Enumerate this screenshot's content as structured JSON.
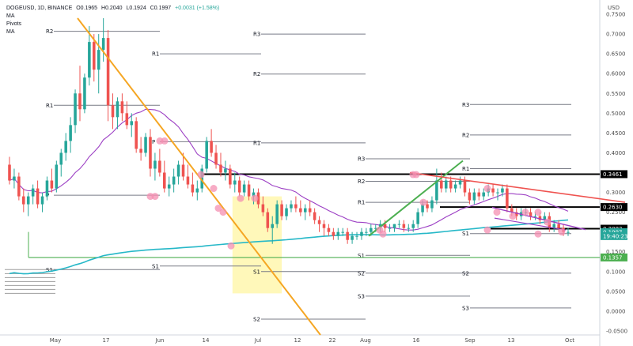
{
  "legend": {
    "symbol": "DOGEUSD, 1D, BINANCE",
    "open": "O0.1965",
    "high": "H0.2040",
    "low": "L0.1924",
    "close": "C0.1997",
    "change": "+0.0031 (+1.58%)",
    "ma1": "MA",
    "pivots": "Pivots",
    "ma2": "MA"
  },
  "colors": {
    "up": "#26a69a",
    "down": "#ef5350",
    "ma_long": "#26b8c8",
    "ma_short": "#9c3fc4",
    "trend_orange": "#f5a623",
    "trend_green": "#4caf50",
    "trend_red": "#ef5350",
    "trend_purple": "#9c3fc4",
    "box_yellow": "#fff59d",
    "horizontal_green": "#4caf50",
    "pivot": "#787b86",
    "circle": "#f48fb1"
  },
  "chart_data": {
    "type": "candlestick",
    "currency_label": "USD",
    "y_ticks": [
      "0.7500",
      "0.7000",
      "0.6500",
      "0.6000",
      "0.5500",
      "0.5000",
      "0.4500",
      "0.4000",
      "0.3500",
      "0.3000",
      "0.2500",
      "0.2000",
      "0.1500",
      "0.1000",
      "0.0500",
      "0.0000",
      "-0.0500"
    ],
    "y_range": [
      -0.06,
      0.77
    ],
    "x_ticks": [
      "May",
      "17",
      "Jun",
      "14",
      "Jul",
      "12",
      "22",
      "Aug",
      "16",
      "Sep",
      "13",
      "Oct"
    ],
    "price_labels": [
      {
        "text": "0.3461",
        "value": 0.3461,
        "style": "black"
      },
      {
        "text": "0.2630",
        "value": 0.263,
        "style": "black"
      },
      {
        "text": "0.2083",
        "value": 0.2083,
        "style": "black"
      },
      {
        "text": "0.1997",
        "value": 0.1997,
        "style": "teal"
      },
      {
        "text": "19:40:23",
        "value": 0.1897,
        "style": "teal"
      },
      {
        "text": "0.1357",
        "value": 0.1357,
        "style": "green"
      }
    ],
    "pivot_levels": [
      {
        "label": "R3",
        "value": 0.7
      },
      {
        "label": "R2",
        "value": 0.707
      },
      {
        "label": "R1",
        "value": 0.65
      },
      {
        "label": "R2",
        "value": 0.599
      },
      {
        "label": "R1",
        "value": 0.52
      },
      {
        "label": "R3",
        "value": 0.522
      },
      {
        "label": "R2",
        "value": 0.445
      },
      {
        "label": "P",
        "value": 0.428
      },
      {
        "label": "R1",
        "value": 0.425
      },
      {
        "label": "R1",
        "value": 0.36
      },
      {
        "label": "R3",
        "value": 0.385
      },
      {
        "label": "R2",
        "value": 0.328
      },
      {
        "label": "P",
        "value": 0.293
      },
      {
        "label": "R1",
        "value": 0.275
      },
      {
        "label": "S1",
        "value": 0.196
      },
      {
        "label": "S1",
        "value": 0.105
      },
      {
        "label": "S1",
        "value": 0.141
      },
      {
        "label": "S1",
        "value": 0.114
      },
      {
        "label": "S1",
        "value": 0.1
      },
      {
        "label": "S2",
        "value": 0.096
      },
      {
        "label": "S2",
        "value": 0.096
      },
      {
        "label": "S3",
        "value": 0.038
      },
      {
        "label": "S2",
        "value": -0.02
      },
      {
        "label": "S3",
        "value": 0.008
      }
    ],
    "candles": [
      [
        0.37,
        0.39,
        0.32,
        0.33
      ],
      [
        0.33,
        0.36,
        0.31,
        0.34
      ],
      [
        0.34,
        0.35,
        0.28,
        0.29
      ],
      [
        0.29,
        0.31,
        0.25,
        0.27
      ],
      [
        0.27,
        0.3,
        0.24,
        0.29
      ],
      [
        0.29,
        0.32,
        0.27,
        0.31
      ],
      [
        0.31,
        0.33,
        0.26,
        0.27
      ],
      [
        0.27,
        0.3,
        0.25,
        0.29
      ],
      [
        0.29,
        0.34,
        0.28,
        0.33
      ],
      [
        0.33,
        0.36,
        0.3,
        0.31
      ],
      [
        0.31,
        0.38,
        0.3,
        0.37
      ],
      [
        0.37,
        0.41,
        0.34,
        0.4
      ],
      [
        0.4,
        0.45,
        0.38,
        0.43
      ],
      [
        0.43,
        0.49,
        0.4,
        0.47
      ],
      [
        0.47,
        0.56,
        0.45,
        0.55
      ],
      [
        0.55,
        0.62,
        0.48,
        0.51
      ],
      [
        0.51,
        0.6,
        0.5,
        0.59
      ],
      [
        0.59,
        0.72,
        0.57,
        0.68
      ],
      [
        0.68,
        0.7,
        0.58,
        0.61
      ],
      [
        0.61,
        0.7,
        0.55,
        0.66
      ],
      [
        0.66,
        0.74,
        0.63,
        0.69
      ],
      [
        0.69,
        0.71,
        0.48,
        0.52
      ],
      [
        0.52,
        0.55,
        0.46,
        0.49
      ],
      [
        0.49,
        0.54,
        0.46,
        0.53
      ],
      [
        0.53,
        0.55,
        0.48,
        0.5
      ],
      [
        0.5,
        0.53,
        0.46,
        0.47
      ],
      [
        0.47,
        0.5,
        0.44,
        0.48
      ],
      [
        0.48,
        0.49,
        0.4,
        0.41
      ],
      [
        0.41,
        0.44,
        0.38,
        0.4
      ],
      [
        0.4,
        0.45,
        0.39,
        0.44
      ],
      [
        0.44,
        0.46,
        0.34,
        0.36
      ],
      [
        0.36,
        0.4,
        0.33,
        0.38
      ],
      [
        0.38,
        0.41,
        0.34,
        0.35
      ],
      [
        0.35,
        0.38,
        0.3,
        0.31
      ],
      [
        0.31,
        0.34,
        0.29,
        0.32
      ],
      [
        0.32,
        0.36,
        0.3,
        0.34
      ],
      [
        0.34,
        0.38,
        0.32,
        0.37
      ],
      [
        0.37,
        0.4,
        0.33,
        0.34
      ],
      [
        0.34,
        0.37,
        0.31,
        0.32
      ],
      [
        0.32,
        0.35,
        0.29,
        0.3
      ],
      [
        0.3,
        0.33,
        0.28,
        0.31
      ],
      [
        0.31,
        0.37,
        0.3,
        0.36
      ],
      [
        0.36,
        0.44,
        0.35,
        0.43
      ],
      [
        0.43,
        0.46,
        0.39,
        0.4
      ],
      [
        0.4,
        0.42,
        0.36,
        0.37
      ],
      [
        0.37,
        0.4,
        0.34,
        0.35
      ],
      [
        0.35,
        0.38,
        0.33,
        0.36
      ],
      [
        0.36,
        0.37,
        0.31,
        0.32
      ],
      [
        0.32,
        0.35,
        0.3,
        0.33
      ],
      [
        0.33,
        0.34,
        0.29,
        0.3
      ],
      [
        0.3,
        0.33,
        0.29,
        0.32
      ],
      [
        0.32,
        0.33,
        0.28,
        0.29
      ],
      [
        0.29,
        0.31,
        0.27,
        0.3
      ],
      [
        0.3,
        0.31,
        0.26,
        0.27
      ],
      [
        0.27,
        0.29,
        0.24,
        0.25
      ],
      [
        0.25,
        0.26,
        0.2,
        0.21
      ],
      [
        0.21,
        0.24,
        0.17,
        0.22
      ],
      [
        0.22,
        0.28,
        0.21,
        0.27
      ],
      [
        0.27,
        0.28,
        0.23,
        0.24
      ],
      [
        0.24,
        0.27,
        0.23,
        0.26
      ],
      [
        0.26,
        0.28,
        0.25,
        0.27
      ],
      [
        0.27,
        0.29,
        0.25,
        0.26
      ],
      [
        0.26,
        0.28,
        0.24,
        0.25
      ],
      [
        0.25,
        0.27,
        0.23,
        0.26
      ],
      [
        0.26,
        0.28,
        0.24,
        0.25
      ],
      [
        0.25,
        0.26,
        0.22,
        0.23
      ],
      [
        0.23,
        0.24,
        0.2,
        0.22
      ],
      [
        0.22,
        0.23,
        0.19,
        0.21
      ],
      [
        0.21,
        0.22,
        0.19,
        0.2
      ],
      [
        0.2,
        0.21,
        0.18,
        0.19
      ],
      [
        0.19,
        0.21,
        0.18,
        0.2
      ],
      [
        0.2,
        0.21,
        0.19,
        0.2
      ],
      [
        0.2,
        0.21,
        0.17,
        0.18
      ],
      [
        0.18,
        0.2,
        0.17,
        0.19
      ],
      [
        0.19,
        0.2,
        0.18,
        0.19
      ],
      [
        0.19,
        0.21,
        0.18,
        0.2
      ],
      [
        0.2,
        0.21,
        0.19,
        0.2
      ],
      [
        0.2,
        0.22,
        0.19,
        0.21
      ],
      [
        0.21,
        0.22,
        0.2,
        0.21
      ],
      [
        0.21,
        0.23,
        0.2,
        0.22
      ],
      [
        0.22,
        0.23,
        0.2,
        0.21
      ],
      [
        0.21,
        0.22,
        0.2,
        0.21
      ],
      [
        0.21,
        0.22,
        0.2,
        0.22
      ],
      [
        0.22,
        0.23,
        0.21,
        0.22
      ],
      [
        0.22,
        0.23,
        0.2,
        0.21
      ],
      [
        0.21,
        0.22,
        0.2,
        0.21
      ],
      [
        0.21,
        0.23,
        0.2,
        0.22
      ],
      [
        0.22,
        0.26,
        0.21,
        0.25
      ],
      [
        0.25,
        0.28,
        0.24,
        0.27
      ],
      [
        0.27,
        0.28,
        0.25,
        0.26
      ],
      [
        0.26,
        0.29,
        0.25,
        0.28
      ],
      [
        0.28,
        0.36,
        0.27,
        0.33
      ],
      [
        0.33,
        0.35,
        0.3,
        0.31
      ],
      [
        0.31,
        0.34,
        0.3,
        0.33
      ],
      [
        0.33,
        0.34,
        0.3,
        0.31
      ],
      [
        0.31,
        0.33,
        0.3,
        0.32
      ],
      [
        0.32,
        0.34,
        0.31,
        0.33
      ],
      [
        0.33,
        0.34,
        0.29,
        0.3
      ],
      [
        0.3,
        0.31,
        0.27,
        0.28
      ],
      [
        0.28,
        0.31,
        0.27,
        0.3
      ],
      [
        0.3,
        0.31,
        0.28,
        0.29
      ],
      [
        0.29,
        0.31,
        0.28,
        0.3
      ],
      [
        0.3,
        0.32,
        0.29,
        0.31
      ],
      [
        0.31,
        0.32,
        0.29,
        0.3
      ],
      [
        0.3,
        0.31,
        0.28,
        0.3
      ],
      [
        0.3,
        0.32,
        0.29,
        0.31
      ],
      [
        0.31,
        0.32,
        0.25,
        0.26
      ],
      [
        0.26,
        0.27,
        0.24,
        0.25
      ],
      [
        0.25,
        0.26,
        0.23,
        0.24
      ],
      [
        0.24,
        0.26,
        0.23,
        0.25
      ],
      [
        0.25,
        0.26,
        0.24,
        0.25
      ],
      [
        0.25,
        0.26,
        0.23,
        0.24
      ],
      [
        0.24,
        0.25,
        0.23,
        0.24
      ],
      [
        0.24,
        0.25,
        0.22,
        0.23
      ],
      [
        0.23,
        0.25,
        0.22,
        0.24
      ],
      [
        0.24,
        0.25,
        0.2,
        0.21
      ],
      [
        0.21,
        0.23,
        0.2,
        0.22
      ],
      [
        0.22,
        0.23,
        0.2,
        0.21
      ],
      [
        0.21,
        0.22,
        0.19,
        0.2
      ],
      [
        0.2,
        0.21,
        0.19,
        0.2
      ]
    ]
  }
}
